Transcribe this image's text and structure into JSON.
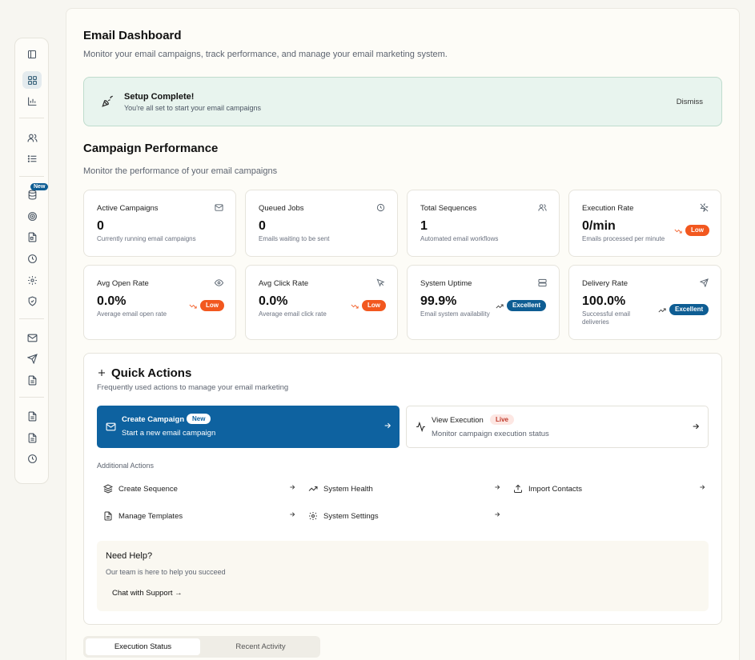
{
  "sidebar": {
    "new_badge": "New",
    "icons": [
      "panel-toggle-icon",
      "dashboard-icon",
      "analytics-icon",
      "users-icon",
      "list-icon",
      "database-icon",
      "target-icon",
      "file-icon",
      "clock-icon",
      "settings-icon",
      "shield-icon",
      "mail-icon",
      "send-icon",
      "document-icon",
      "document-icon",
      "document-icon",
      "history-icon"
    ]
  },
  "header": {
    "title": "Email Dashboard",
    "subtitle": "Monitor your email campaigns, track performance, and manage your email marketing system."
  },
  "banner": {
    "title": "Setup Complete!",
    "message": "You're all set to start your email campaigns",
    "dismiss_label": "Dismiss",
    "icon": "party-popper-icon"
  },
  "performance": {
    "title": "Campaign Performance",
    "subtitle": "Monitor the performance of your email campaigns",
    "cards": [
      {
        "title": "Active Campaigns",
        "value": "0",
        "desc": "Currently running email campaigns",
        "icon": "mail-icon"
      },
      {
        "title": "Queued Jobs",
        "value": "0",
        "desc": "Emails waiting to be sent",
        "icon": "clock-icon"
      },
      {
        "title": "Total Sequences",
        "value": "1",
        "desc": "Automated email workflows",
        "icon": "users-icon"
      },
      {
        "title": "Execution Rate",
        "value": "0/min",
        "desc": "Emails processed per minute",
        "icon": "zap-off-icon",
        "badge": "Low"
      },
      {
        "title": "Avg Open Rate",
        "value": "0.0%",
        "desc": "Average email open rate",
        "icon": "eye-icon",
        "badge": "Low"
      },
      {
        "title": "Avg Click Rate",
        "value": "0.0%",
        "desc": "Average email click rate",
        "icon": "cursor-icon",
        "badge": "Low"
      },
      {
        "title": "System Uptime",
        "value": "99.9%",
        "desc": "Email system availability",
        "icon": "server-icon",
        "badge": "Excellent"
      },
      {
        "title": "Delivery Rate",
        "value": "100.0%",
        "desc": "Successful email deliveries",
        "icon": "send-icon",
        "badge": "Excellent"
      }
    ]
  },
  "quick_actions": {
    "title": "Quick Actions",
    "subtitle": "Frequently used actions to manage your email marketing",
    "primary": {
      "title": "Create Campaign",
      "badge": "New",
      "desc": "Start a new email campaign"
    },
    "secondary": {
      "title": "View Execution",
      "badge": "Live",
      "desc": "Monitor campaign execution status"
    },
    "additional_label": "Additional Actions",
    "actions": [
      {
        "label": "Create Sequence",
        "icon": "layers-icon"
      },
      {
        "label": "System Health",
        "icon": "trending-up-icon"
      },
      {
        "label": "Import Contacts",
        "icon": "upload-icon"
      },
      {
        "label": "Manage Templates",
        "icon": "file-text-icon"
      },
      {
        "label": "System Settings",
        "icon": "settings-icon"
      }
    ],
    "help": {
      "title": "Need Help?",
      "message": "Our team is here to help you succeed",
      "link": "Chat with Support →"
    }
  },
  "tabs": [
    {
      "label": "Execution Status",
      "active": true
    },
    {
      "label": "Recent Activity",
      "active": false
    }
  ],
  "colors": {
    "primary": "#0e62a0",
    "low": "#f2581f",
    "excellent": "#0e5d93",
    "banner_bg": "#e8f4ee"
  }
}
